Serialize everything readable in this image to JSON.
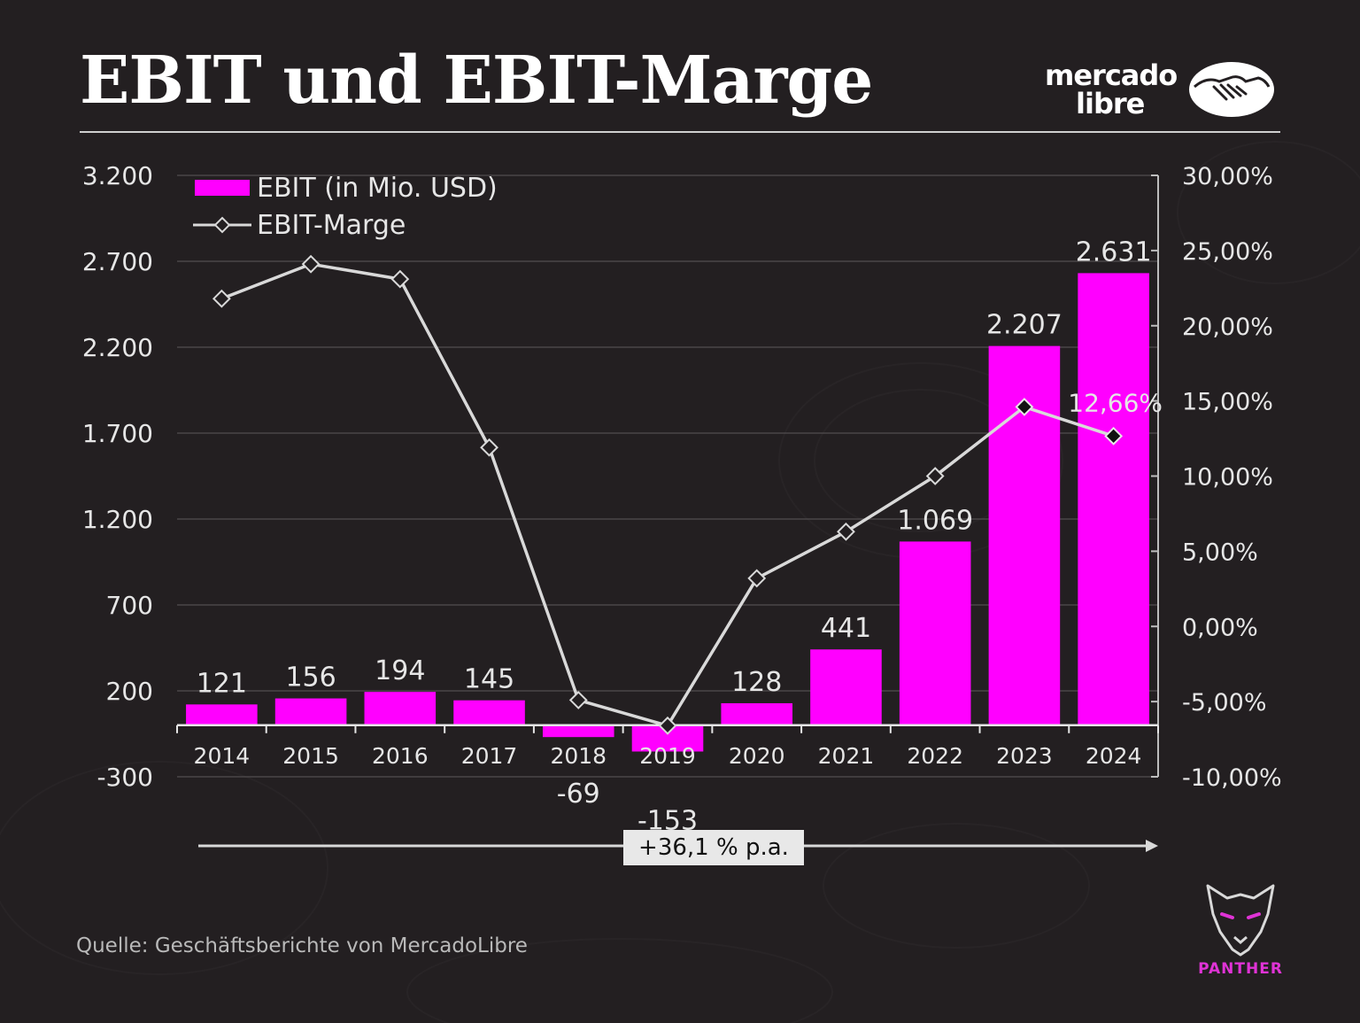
{
  "title": "EBIT und EBIT-Marge",
  "logo": {
    "line1": "mercado",
    "line2": "libre",
    "icon": "handshake-icon"
  },
  "source": "Quelle: Geschäftsberichte von MercadoLibre",
  "brand": {
    "name": "PANTHER",
    "icon": "panther-head-icon",
    "color": "#e033d6"
  },
  "cagr_label": "+36,1 % p.a.",
  "colors": {
    "background": "#231f21",
    "bar": "#ff00ff",
    "line": "#d9d9d9",
    "grid": "#4a4648",
    "text": "#e6e6e6"
  },
  "chart_data": {
    "type": "bar",
    "title": "EBIT und EBIT-Marge",
    "categories": [
      "2014",
      "2015",
      "2016",
      "2017",
      "2018",
      "2019",
      "2020",
      "2021",
      "2022",
      "2023",
      "2024"
    ],
    "series": [
      {
        "name": "EBIT (in Mio. USD)",
        "type": "bar",
        "axis": "left",
        "values": [
          121,
          156,
          194,
          145,
          -69,
          -153,
          128,
          441,
          1069,
          2207,
          2631
        ],
        "labels": [
          "121",
          "156",
          "194",
          "145",
          "-69",
          "-153",
          "128",
          "441",
          "1.069",
          "2.207",
          "2.631"
        ]
      },
      {
        "name": "EBIT-Marge",
        "type": "line",
        "axis": "right",
        "values": [
          21.8,
          24.1,
          23.1,
          11.9,
          -4.9,
          -6.6,
          3.2,
          6.3,
          10.0,
          14.6,
          12.66
        ],
        "labels": [
          "",
          "",
          "",
          "",
          "",
          "",
          "",
          "",
          "",
          "",
          "12,66%"
        ]
      }
    ],
    "y_left": {
      "ylim": [
        -300,
        3200
      ],
      "ticks": [
        -300,
        200,
        700,
        1200,
        1700,
        2200,
        2700,
        3200
      ],
      "tick_labels": [
        "-300",
        "200",
        "700",
        "1.200",
        "1.700",
        "2.200",
        "2.700",
        "3.200"
      ]
    },
    "y_right": {
      "ylim": [
        -10,
        30
      ],
      "ticks": [
        -10,
        -5,
        0,
        5,
        10,
        15,
        20,
        25,
        30
      ],
      "tick_labels": [
        "-10,00%",
        "-5,00%",
        "0,00%",
        "5,00%",
        "10,00%",
        "15,00%",
        "20,00%",
        "25,00%",
        "30,00%"
      ]
    },
    "grid": true,
    "legend": "top-left"
  }
}
